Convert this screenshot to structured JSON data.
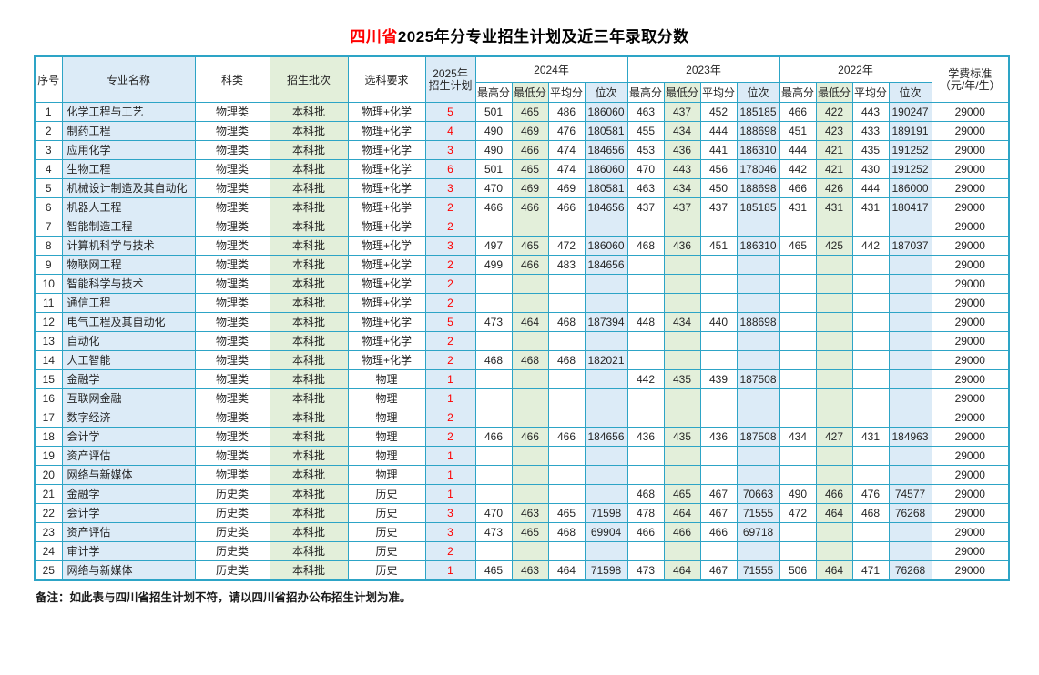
{
  "title": {
    "prefix": "四川省",
    "suffix": "2025年分专业招生计划及近三年录取分数"
  },
  "note": "备注：如此表与四川省招生计划不符，请以四川省招办公布招生计划为准。",
  "colors": {
    "border": "#2da4c6",
    "light_blue_fill": "#dcebf7",
    "light_green_fill": "#e3efda",
    "plan_number_red": "#fe0000",
    "title_highlight_red": "#ff0000"
  },
  "table": {
    "headers": {
      "index": "序号",
      "major": "专业名称",
      "category": "科类",
      "batch": "招生批次",
      "subject_req": "选科要求",
      "plan_line1": "2025年",
      "plan_line2": "招生计划",
      "year_2024": "2024年",
      "year_2023": "2023年",
      "year_2022": "2022年",
      "sub_max": "最高分",
      "sub_min": "最低分",
      "sub_avg": "平均分",
      "sub_rank": "位次",
      "tuition_line1": "学费标准",
      "tuition_line2": "（元/年/生）"
    },
    "rows": [
      {
        "no": "1",
        "major": "化学工程与工艺",
        "category": "物理类",
        "batch": "本科批",
        "req": "物理+化学",
        "plan": "5",
        "scores": [
          "501",
          "465",
          "486",
          "186060",
          "463",
          "437",
          "452",
          "185185",
          "466",
          "422",
          "443",
          "190247"
        ],
        "tuition": "29000"
      },
      {
        "no": "2",
        "major": "制药工程",
        "category": "物理类",
        "batch": "本科批",
        "req": "物理+化学",
        "plan": "4",
        "scores": [
          "490",
          "469",
          "476",
          "180581",
          "455",
          "434",
          "444",
          "188698",
          "451",
          "423",
          "433",
          "189191"
        ],
        "tuition": "29000"
      },
      {
        "no": "3",
        "major": "应用化学",
        "category": "物理类",
        "batch": "本科批",
        "req": "物理+化学",
        "plan": "3",
        "scores": [
          "490",
          "466",
          "474",
          "184656",
          "453",
          "436",
          "441",
          "186310",
          "444",
          "421",
          "435",
          "191252"
        ],
        "tuition": "29000"
      },
      {
        "no": "4",
        "major": "生物工程",
        "category": "物理类",
        "batch": "本科批",
        "req": "物理+化学",
        "plan": "6",
        "scores": [
          "501",
          "465",
          "474",
          "186060",
          "470",
          "443",
          "456",
          "178046",
          "442",
          "421",
          "430",
          "191252"
        ],
        "tuition": "29000"
      },
      {
        "no": "5",
        "major": "机械设计制造及其自动化",
        "category": "物理类",
        "batch": "本科批",
        "req": "物理+化学",
        "plan": "3",
        "scores": [
          "470",
          "469",
          "469",
          "180581",
          "463",
          "434",
          "450",
          "188698",
          "466",
          "426",
          "444",
          "186000"
        ],
        "tuition": "29000"
      },
      {
        "no": "6",
        "major": "机器人工程",
        "category": "物理类",
        "batch": "本科批",
        "req": "物理+化学",
        "plan": "2",
        "scores": [
          "466",
          "466",
          "466",
          "184656",
          "437",
          "437",
          "437",
          "185185",
          "431",
          "431",
          "431",
          "180417"
        ],
        "tuition": "29000"
      },
      {
        "no": "7",
        "major": "智能制造工程",
        "category": "物理类",
        "batch": "本科批",
        "req": "物理+化学",
        "plan": "2",
        "scores": [
          "",
          "",
          "",
          "",
          "",
          "",
          "",
          "",
          "",
          "",
          "",
          ""
        ],
        "tuition": "29000"
      },
      {
        "no": "8",
        "major": "计算机科学与技术",
        "category": "物理类",
        "batch": "本科批",
        "req": "物理+化学",
        "plan": "3",
        "scores": [
          "497",
          "465",
          "472",
          "186060",
          "468",
          "436",
          "451",
          "186310",
          "465",
          "425",
          "442",
          "187037"
        ],
        "tuition": "29000"
      },
      {
        "no": "9",
        "major": "物联网工程",
        "category": "物理类",
        "batch": "本科批",
        "req": "物理+化学",
        "plan": "2",
        "scores": [
          "499",
          "466",
          "483",
          "184656",
          "",
          "",
          "",
          "",
          "",
          "",
          "",
          ""
        ],
        "tuition": "29000"
      },
      {
        "no": "10",
        "major": "智能科学与技术",
        "category": "物理类",
        "batch": "本科批",
        "req": "物理+化学",
        "plan": "2",
        "scores": [
          "",
          "",
          "",
          "",
          "",
          "",
          "",
          "",
          "",
          "",
          "",
          ""
        ],
        "tuition": "29000"
      },
      {
        "no": "11",
        "major": "通信工程",
        "category": "物理类",
        "batch": "本科批",
        "req": "物理+化学",
        "plan": "2",
        "scores": [
          "",
          "",
          "",
          "",
          "",
          "",
          "",
          "",
          "",
          "",
          "",
          ""
        ],
        "tuition": "29000"
      },
      {
        "no": "12",
        "major": "电气工程及其自动化",
        "category": "物理类",
        "batch": "本科批",
        "req": "物理+化学",
        "plan": "5",
        "scores": [
          "473",
          "464",
          "468",
          "187394",
          "448",
          "434",
          "440",
          "188698",
          "",
          "",
          "",
          ""
        ],
        "tuition": "29000"
      },
      {
        "no": "13",
        "major": "自动化",
        "category": "物理类",
        "batch": "本科批",
        "req": "物理+化学",
        "plan": "2",
        "scores": [
          "",
          "",
          "",
          "",
          "",
          "",
          "",
          "",
          "",
          "",
          "",
          ""
        ],
        "tuition": "29000"
      },
      {
        "no": "14",
        "major": "人工智能",
        "category": "物理类",
        "batch": "本科批",
        "req": "物理+化学",
        "plan": "2",
        "scores": [
          "468",
          "468",
          "468",
          "182021",
          "",
          "",
          "",
          "",
          "",
          "",
          "",
          ""
        ],
        "tuition": "29000"
      },
      {
        "no": "15",
        "major": "金融学",
        "category": "物理类",
        "batch": "本科批",
        "req": "物理",
        "plan": "1",
        "scores": [
          "",
          "",
          "",
          "",
          "442",
          "435",
          "439",
          "187508",
          "",
          "",
          "",
          ""
        ],
        "tuition": "29000"
      },
      {
        "no": "16",
        "major": "互联网金融",
        "category": "物理类",
        "batch": "本科批",
        "req": "物理",
        "plan": "1",
        "scores": [
          "",
          "",
          "",
          "",
          "",
          "",
          "",
          "",
          "",
          "",
          "",
          ""
        ],
        "tuition": "29000"
      },
      {
        "no": "17",
        "major": "数字经济",
        "category": "物理类",
        "batch": "本科批",
        "req": "物理",
        "plan": "2",
        "scores": [
          "",
          "",
          "",
          "",
          "",
          "",
          "",
          "",
          "",
          "",
          "",
          ""
        ],
        "tuition": "29000"
      },
      {
        "no": "18",
        "major": "会计学",
        "category": "物理类",
        "batch": "本科批",
        "req": "物理",
        "plan": "2",
        "scores": [
          "466",
          "466",
          "466",
          "184656",
          "436",
          "435",
          "436",
          "187508",
          "434",
          "427",
          "431",
          "184963"
        ],
        "tuition": "29000"
      },
      {
        "no": "19",
        "major": "资产评估",
        "category": "物理类",
        "batch": "本科批",
        "req": "物理",
        "plan": "1",
        "scores": [
          "",
          "",
          "",
          "",
          "",
          "",
          "",
          "",
          "",
          "",
          "",
          ""
        ],
        "tuition": "29000"
      },
      {
        "no": "20",
        "major": "网络与新媒体",
        "category": "物理类",
        "batch": "本科批",
        "req": "物理",
        "plan": "1",
        "scores": [
          "",
          "",
          "",
          "",
          "",
          "",
          "",
          "",
          "",
          "",
          "",
          ""
        ],
        "tuition": "29000"
      },
      {
        "no": "21",
        "major": "金融学",
        "category": "历史类",
        "batch": "本科批",
        "req": "历史",
        "plan": "1",
        "scores": [
          "",
          "",
          "",
          "",
          "468",
          "465",
          "467",
          "70663",
          "490",
          "466",
          "476",
          "74577"
        ],
        "tuition": "29000"
      },
      {
        "no": "22",
        "major": "会计学",
        "category": "历史类",
        "batch": "本科批",
        "req": "历史",
        "plan": "3",
        "scores": [
          "470",
          "463",
          "465",
          "71598",
          "478",
          "464",
          "467",
          "71555",
          "472",
          "464",
          "468",
          "76268"
        ],
        "tuition": "29000"
      },
      {
        "no": "23",
        "major": "资产评估",
        "category": "历史类",
        "batch": "本科批",
        "req": "历史",
        "plan": "3",
        "scores": [
          "473",
          "465",
          "468",
          "69904",
          "466",
          "466",
          "466",
          "69718",
          "",
          "",
          "",
          ""
        ],
        "tuition": "29000"
      },
      {
        "no": "24",
        "major": "审计学",
        "category": "历史类",
        "batch": "本科批",
        "req": "历史",
        "plan": "2",
        "scores": [
          "",
          "",
          "",
          "",
          "",
          "",
          "",
          "",
          "",
          "",
          "",
          ""
        ],
        "tuition": "29000"
      },
      {
        "no": "25",
        "major": "网络与新媒体",
        "category": "历史类",
        "batch": "本科批",
        "req": "历史",
        "plan": "1",
        "scores": [
          "465",
          "463",
          "464",
          "71598",
          "473",
          "464",
          "467",
          "71555",
          "506",
          "464",
          "471",
          "76268"
        ],
        "tuition": "29000"
      }
    ]
  }
}
